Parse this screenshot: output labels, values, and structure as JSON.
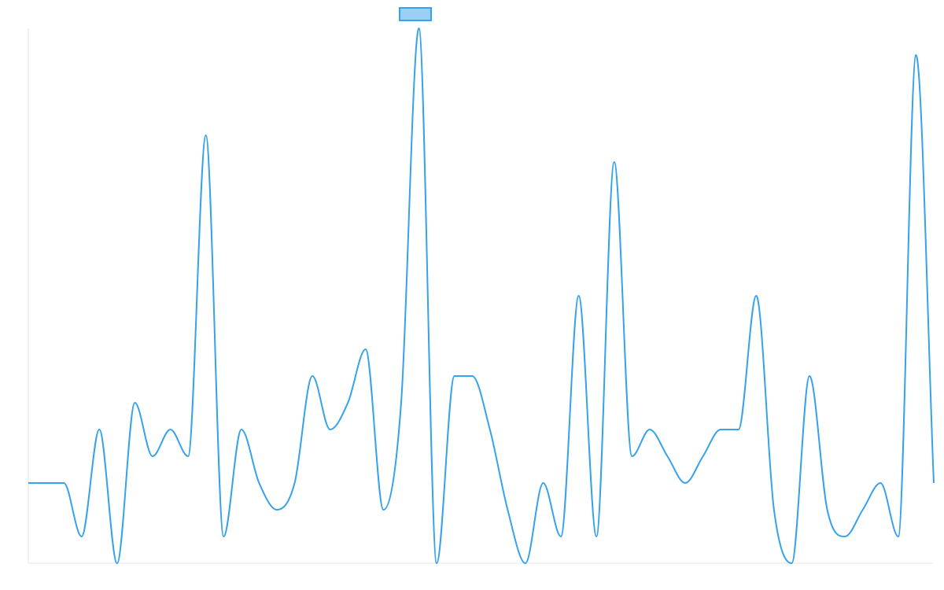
{
  "chart_data": {
    "type": "line",
    "title": "",
    "xlabel": "",
    "ylabel": "",
    "legend": {
      "position": "top-center",
      "entries": [
        {
          "name": "",
          "color": "#36a2eb"
        }
      ]
    },
    "grid": false,
    "ylim": [
      0,
      20
    ],
    "x": [
      0,
      1,
      2,
      3,
      4,
      5,
      6,
      7,
      8,
      9,
      10,
      11,
      12,
      13,
      14,
      15,
      16,
      17,
      18,
      19,
      20,
      21,
      22,
      23,
      24,
      25,
      26,
      27,
      28,
      29,
      30,
      31,
      32,
      33,
      34,
      35,
      36,
      37,
      38,
      39,
      40,
      41,
      42,
      43,
      44,
      45,
      46,
      47,
      48,
      49,
      50,
      51
    ],
    "series": [
      {
        "name": "",
        "color": "#36a2eb",
        "fill": "rgba(54,162,235,0.5)",
        "values": [
          3,
          3,
          3,
          1,
          5,
          0,
          6,
          4,
          5,
          4,
          16,
          1,
          5,
          3,
          2,
          3,
          7,
          5,
          6,
          8,
          2,
          6,
          20,
          0,
          7,
          7,
          5,
          2,
          0,
          3,
          1,
          10,
          1,
          15,
          4,
          5,
          4,
          3,
          4,
          5,
          5,
          10,
          2,
          0,
          7,
          2,
          1,
          2,
          3,
          1,
          19,
          3
        ]
      }
    ]
  }
}
